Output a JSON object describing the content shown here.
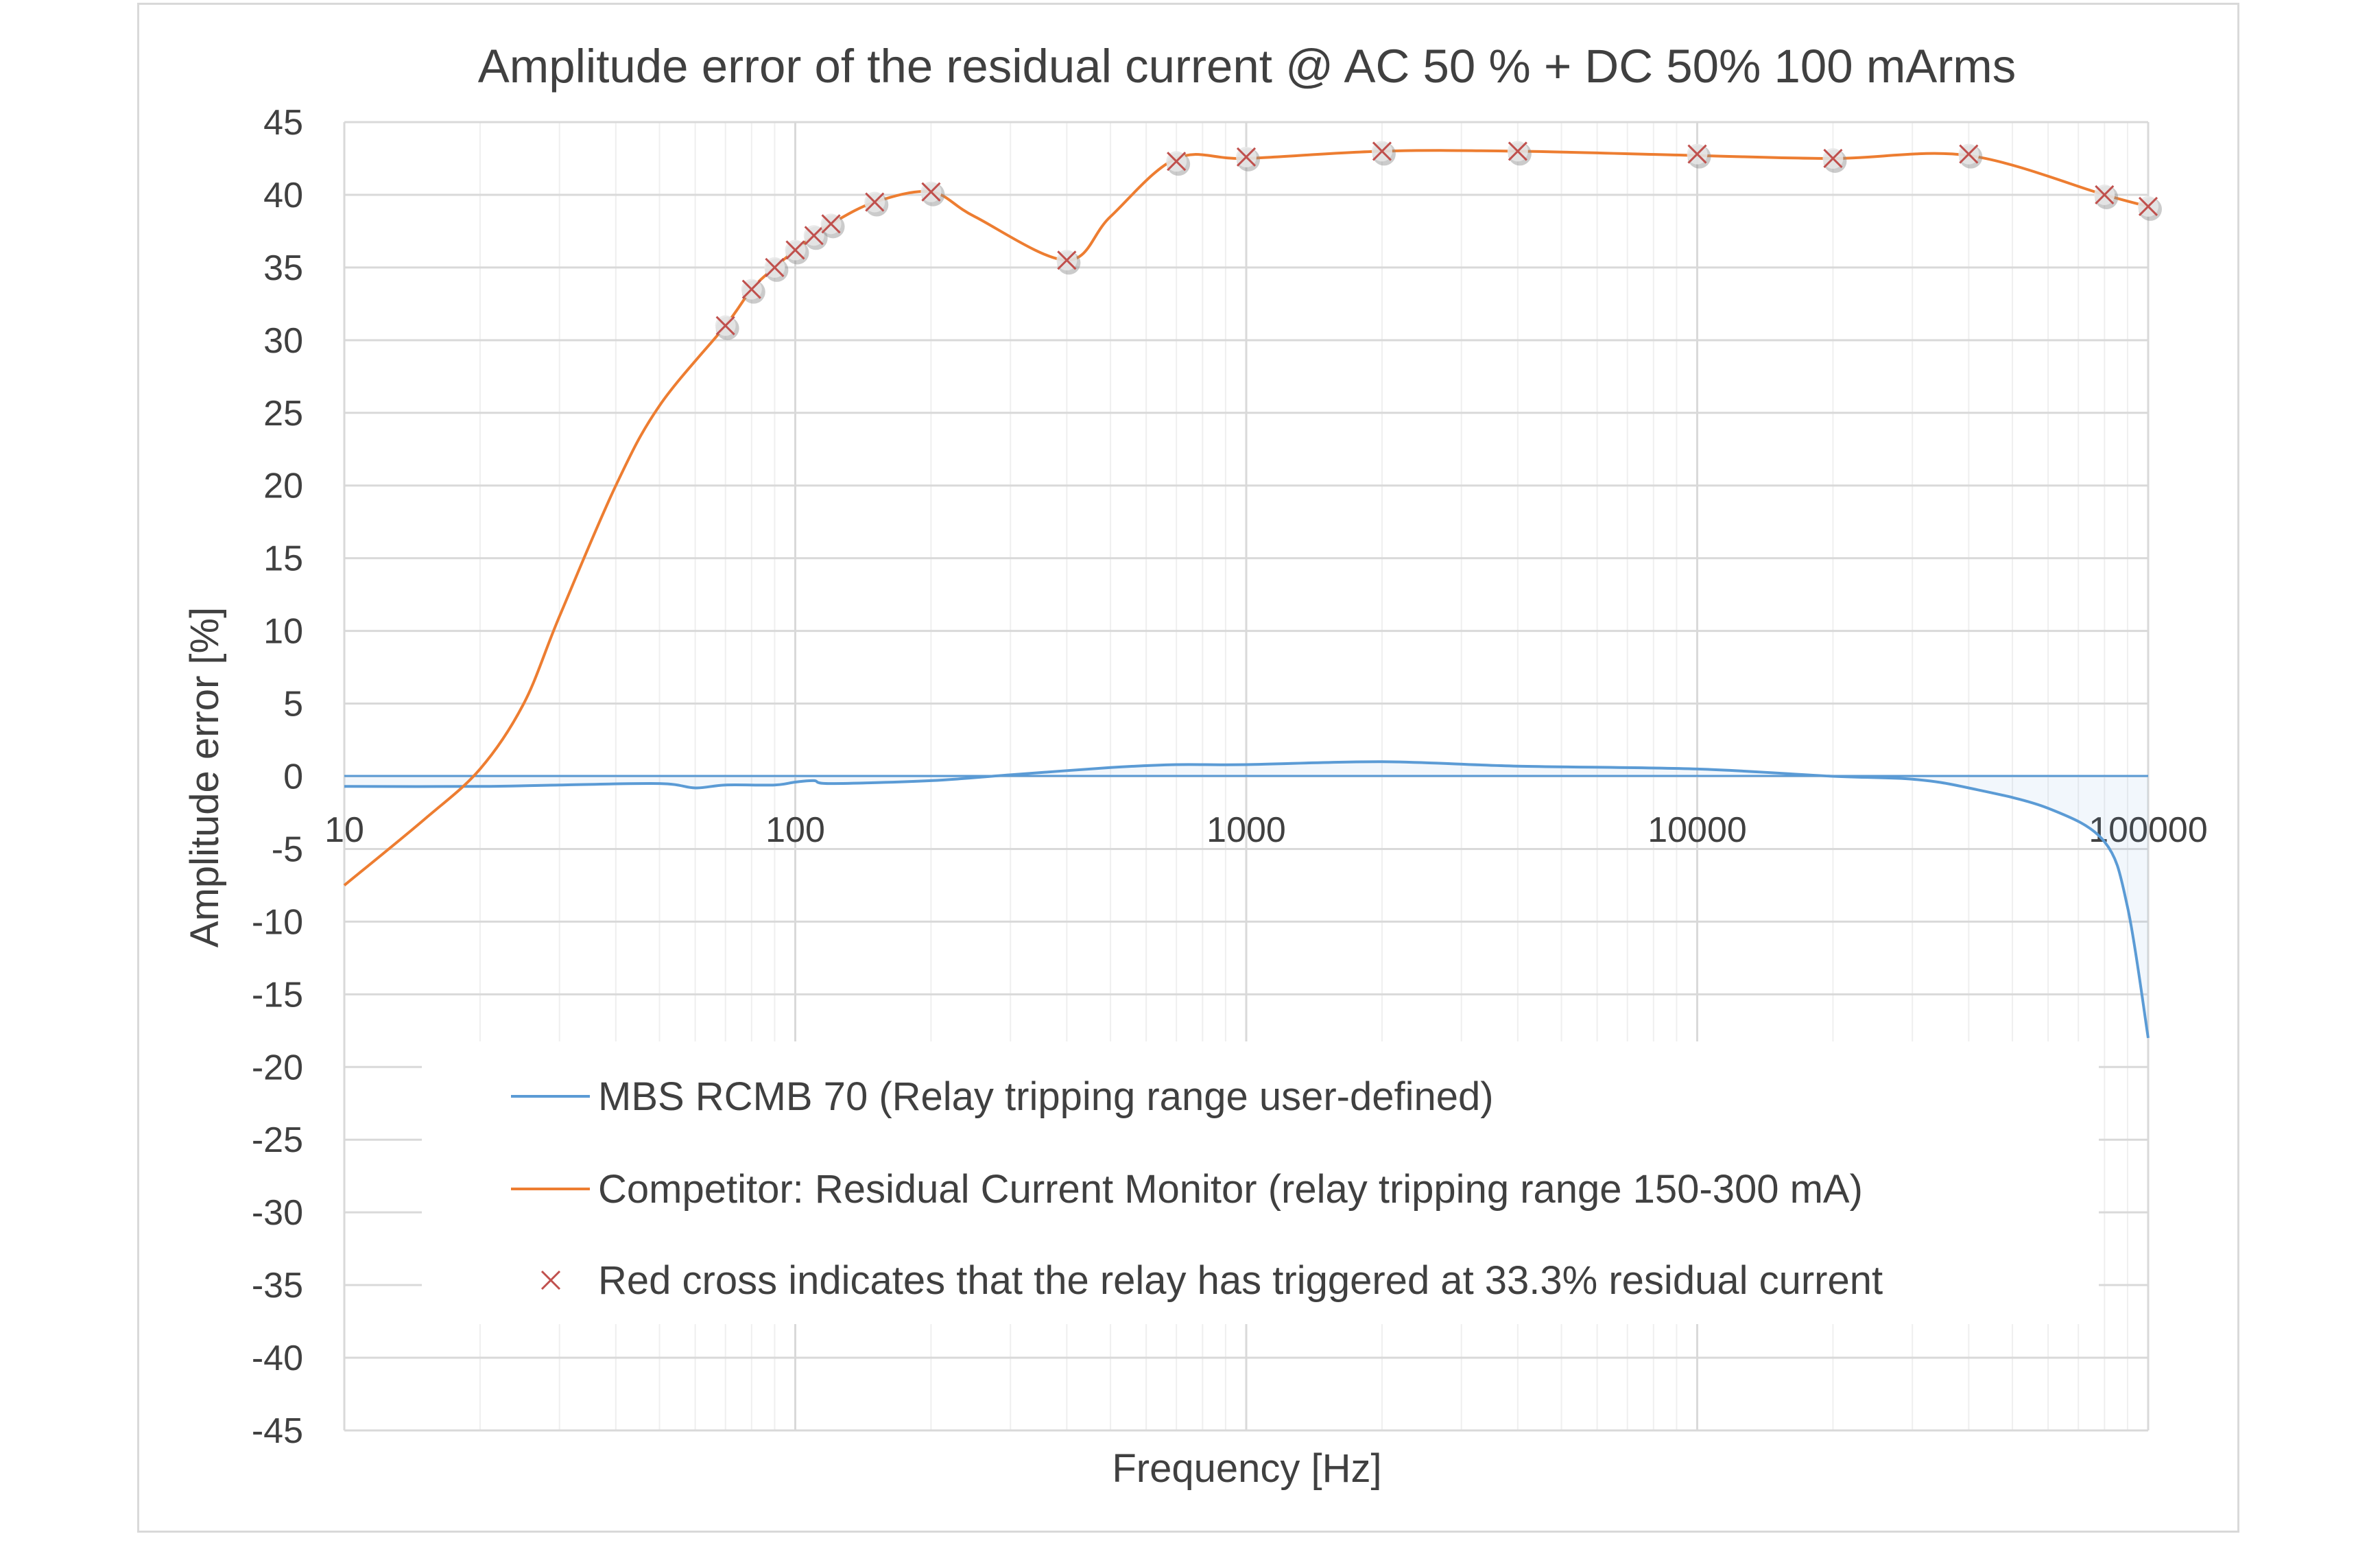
{
  "chart_data": {
    "type": "line",
    "title": "Amplitude error of the residual current @ AC 50 % + DC 50% 100 mArms",
    "xlabel": "Frequency [Hz]",
    "ylabel": "Amplitude error [%]",
    "x_scale": "log",
    "xlim": [
      10,
      100000
    ],
    "ylim": [
      -45,
      45
    ],
    "y_ticks": [
      "45",
      "40",
      "35",
      "30",
      "25",
      "20",
      "15",
      "10",
      "5",
      "0",
      "-5",
      "-10",
      "-15",
      "-20",
      "-25",
      "-30",
      "-35",
      "-40",
      "-45"
    ],
    "x_ticks": [
      "10",
      "100",
      "1000",
      "10000",
      "100000"
    ],
    "grid": true,
    "legend_position": "bottom-center",
    "series": [
      {
        "name": "MBS RCMB 70 (Relay tripping range user-defined)",
        "color": "#5b9bd5",
        "x": [
          10,
          20,
          30,
          50,
          60,
          70,
          90,
          100,
          110,
          120,
          200,
          300,
          500,
          700,
          1000,
          2000,
          4000,
          10000,
          20000,
          30000,
          40000,
          60000,
          80000,
          90000,
          100000
        ],
        "y": [
          -0.7,
          -0.7,
          -0.6,
          -0.5,
          -0.8,
          -0.6,
          -0.6,
          -0.4,
          -0.3,
          -0.5,
          -0.3,
          0.1,
          0.6,
          0.8,
          0.8,
          1.0,
          0.7,
          0.5,
          0.0,
          -0.2,
          -0.8,
          -2.2,
          -4.5,
          -9.0,
          -18.0
        ]
      },
      {
        "name": "Competitor: Residual Current Monitor (relay tripping range 150-300 mA)",
        "color": "#ed7d31",
        "x": [
          10,
          15,
          20,
          25,
          30,
          40,
          50,
          70,
          80,
          90,
          100,
          110,
          120,
          150,
          200,
          250,
          400,
          500,
          700,
          1000,
          2000,
          4000,
          10000,
          20000,
          40000,
          80000,
          100000
        ],
        "y": [
          -7.5,
          -3.0,
          0.5,
          5.0,
          11.0,
          20.0,
          25.5,
          31.0,
          33.5,
          35.0,
          36.2,
          37.2,
          38.0,
          39.5,
          40.2,
          38.5,
          35.5,
          38.5,
          42.5,
          42.5,
          43.0,
          43.0,
          42.7,
          42.5,
          42.7,
          40.0,
          39.2
        ]
      }
    ],
    "markers": {
      "name": "Red cross indicates that the relay has triggered at 33.3% residual current",
      "color": "#c0504d",
      "x": [
        70,
        80,
        90,
        100,
        110,
        120,
        150,
        200,
        400,
        700,
        1000,
        2000,
        4000,
        10000,
        20000,
        40000,
        80000,
        100000
      ],
      "y": [
        31.0,
        33.5,
        35.0,
        36.2,
        37.2,
        38.0,
        39.5,
        40.2,
        35.5,
        42.3,
        42.6,
        43.0,
        43.0,
        42.8,
        42.5,
        42.8,
        40.0,
        39.2
      ]
    }
  }
}
